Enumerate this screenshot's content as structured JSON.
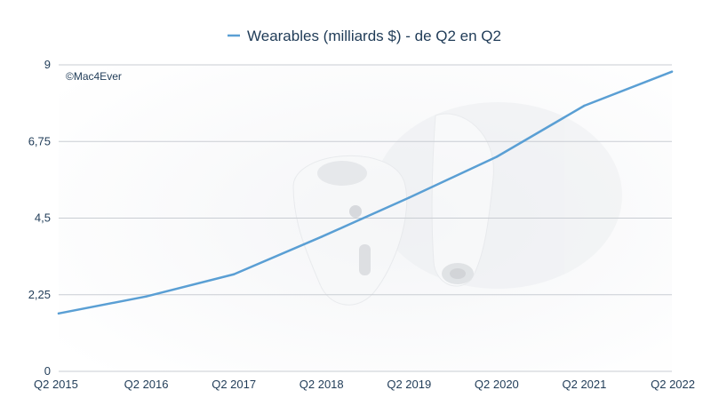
{
  "chart_data": {
    "type": "line",
    "title": "",
    "xlabel": "",
    "ylabel": "",
    "categories": [
      "Q2 2015",
      "Q2 2016",
      "Q2 2017",
      "Q2 2018",
      "Q2 2019",
      "Q2 2020",
      "Q2 2021",
      "Q2 2022"
    ],
    "series": [
      {
        "name": "Wearables (milliards $) - de Q2 en Q2",
        "values": [
          1.7,
          2.2,
          2.85,
          3.95,
          5.1,
          6.3,
          7.8,
          8.8
        ]
      }
    ],
    "ylim": [
      0,
      9
    ],
    "yticks": [
      0,
      2.25,
      4.5,
      6.75,
      9
    ],
    "ytick_labels": [
      "0",
      "2,25",
      "4,5",
      "6,75",
      "9"
    ],
    "grid": true,
    "legend_position": "top-center",
    "watermark": "©Mac4Ever",
    "colors": {
      "series": "#5a9fd4",
      "text": "#1f3b57",
      "grid": "#c9cdd3"
    }
  }
}
